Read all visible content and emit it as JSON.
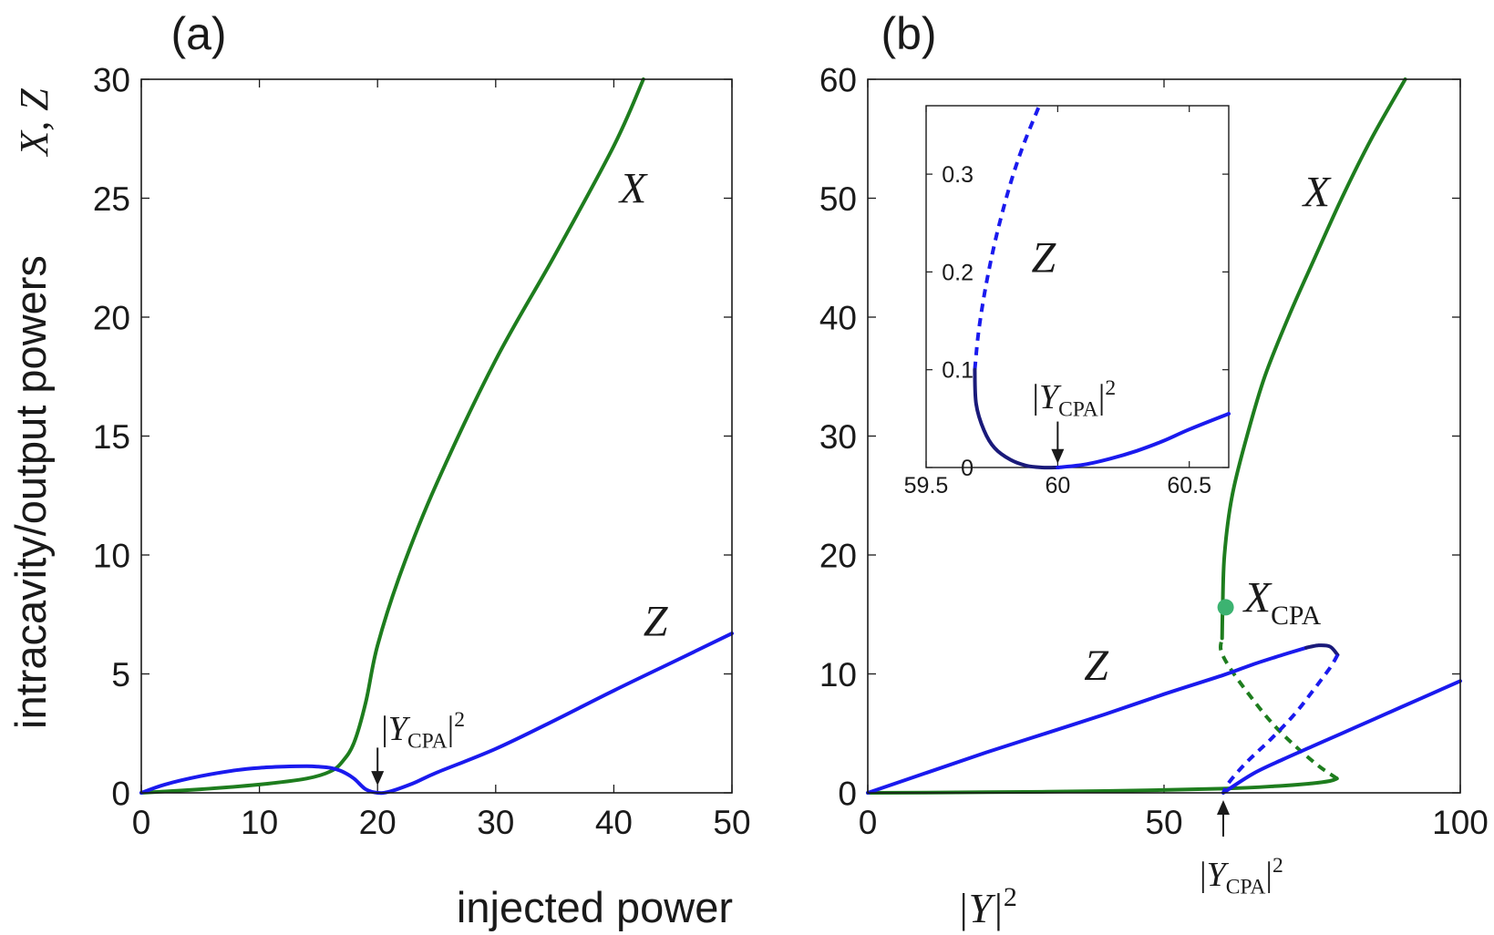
{
  "colors": {
    "x": "#1e7d1e",
    "z": "#1a1aee",
    "zdark": "#1a1a7a",
    "marker": "#3cb371",
    "axis": "#1a1a1a"
  },
  "figure": {
    "ylabel": "intracavity/output powers",
    "ylabel_vars": "X, Z",
    "xlabel": "injected power",
    "xlabel_var": "|Y|",
    "xlabel_sup": "2"
  },
  "chart_data": [
    {
      "type": "line",
      "panel_label": "(a)",
      "xlim": [
        0,
        50
      ],
      "ylim": [
        0,
        30
      ],
      "xticks": [
        0,
        10,
        20,
        30,
        40,
        50
      ],
      "yticks": [
        0,
        5,
        10,
        15,
        20,
        25,
        30
      ],
      "xtick_labels": [
        "0",
        "10",
        "20",
        "30",
        "40",
        "50"
      ],
      "ytick_labels": [
        "0",
        "5",
        "10",
        "15",
        "20",
        "25",
        "30"
      ],
      "series": [
        {
          "name": "X",
          "style": "solid",
          "color": "#1e7d1e",
          "x": [
            0,
            5,
            10,
            14,
            16,
            17,
            18,
            19,
            20,
            22,
            25,
            30,
            35,
            40,
            42.5
          ],
          "y": [
            0,
            0.15,
            0.35,
            0.6,
            0.9,
            1.3,
            2.1,
            3.8,
            6.2,
            9.3,
            13.0,
            18.2,
            22.6,
            27.2,
            30.0
          ]
        },
        {
          "name": "Z",
          "style": "solid",
          "color": "#1a1aee",
          "x": [
            0,
            2,
            5,
            8,
            10,
            12,
            14,
            15,
            16,
            17,
            18,
            19,
            20,
            21,
            23,
            25,
            30,
            35,
            40,
            45,
            50
          ],
          "y": [
            0,
            0.35,
            0.7,
            0.95,
            1.05,
            1.1,
            1.12,
            1.1,
            1.05,
            0.9,
            0.6,
            0.15,
            0.0,
            0.05,
            0.4,
            0.85,
            1.85,
            3.05,
            4.3,
            5.5,
            6.7
          ]
        }
      ],
      "labels": [
        {
          "text": "X",
          "x": 40.5,
          "y": 24.8
        },
        {
          "text": "Z",
          "x": 42.5,
          "y": 6.6
        }
      ],
      "annotations": [
        {
          "text": "|Y",
          "sub": "CPA",
          "sup": "2",
          "arrow_x": 20,
          "arrow_y_top": 1.9,
          "arrow_y_bottom": 0.3
        }
      ]
    },
    {
      "type": "line",
      "panel_label": "(b)",
      "xlim": [
        0,
        100
      ],
      "ylim": [
        0,
        60
      ],
      "xticks": [
        0,
        50,
        100
      ],
      "yticks": [
        0,
        10,
        20,
        30,
        40,
        50,
        60
      ],
      "xtick_labels": [
        "0",
        "50",
        "100"
      ],
      "ytick_labels": [
        "0",
        "10",
        "20",
        "30",
        "40",
        "50",
        "60"
      ],
      "series": [
        {
          "name": "X lower branch",
          "style": "solid",
          "color": "#1e7d1e",
          "x": [
            0,
            20,
            40,
            60,
            70,
            75,
            78,
            79.2
          ],
          "y": [
            0,
            0.05,
            0.15,
            0.35,
            0.6,
            0.8,
            1.0,
            1.2
          ]
        },
        {
          "name": "X unstable branch",
          "style": "dashed",
          "color": "#1e7d1e",
          "x": [
            79.2,
            76,
            72,
            68,
            64,
            61,
            59.6,
            59.8
          ],
          "y": [
            1.2,
            2.3,
            4.0,
            6.0,
            8.5,
            10.6,
            12.0,
            13.0
          ]
        },
        {
          "name": "X upper branch",
          "style": "solid",
          "color": "#1e7d1e",
          "x": [
            59.8,
            59.9,
            60.2,
            61.5,
            64,
            67,
            71,
            75,
            80,
            85,
            90.7
          ],
          "y": [
            13.0,
            15.6,
            20.0,
            25.0,
            30.0,
            35.0,
            40.0,
            44.5,
            50.0,
            55.0,
            60.0
          ]
        },
        {
          "name": "Z upper branch",
          "style": "solid",
          "color": "#1a1aee",
          "x": [
            0,
            10,
            20,
            30,
            40,
            50,
            60,
            65,
            70,
            74
          ],
          "y": [
            0,
            1.7,
            3.4,
            5.0,
            6.6,
            8.3,
            9.9,
            10.8,
            11.6,
            12.2
          ]
        },
        {
          "name": "Z fold",
          "style": "solid",
          "color": "#1a1a7a",
          "x": [
            74,
            76,
            78,
            79.3
          ],
          "y": [
            12.2,
            12.4,
            12.3,
            11.6
          ]
        },
        {
          "name": "Z unstable branch",
          "style": "dashed",
          "color": "#1a1aee",
          "x": [
            79.3,
            78,
            75,
            72,
            68,
            64,
            61,
            60
          ],
          "y": [
            11.6,
            10.5,
            8.5,
            6.6,
            4.5,
            2.6,
            0.9,
            0.0
          ]
        },
        {
          "name": "Z lower branch",
          "style": "solid",
          "color": "#1a1aee",
          "x": [
            60,
            65,
            70,
            75,
            80,
            85,
            90,
            95,
            100
          ],
          "y": [
            0.0,
            1.6,
            2.8,
            3.9,
            5.0,
            6.1,
            7.2,
            8.3,
            9.4
          ]
        }
      ],
      "markers": [
        {
          "name": "X_CPA",
          "x": 60.4,
          "y": 15.6,
          "color": "#3cb371"
        }
      ],
      "labels": [
        {
          "text": "X",
          "x": 73.5,
          "y": 49.3
        },
        {
          "text": "Z",
          "x": 36.5,
          "y": 9.5
        },
        {
          "text": "X",
          "sub": "CPA",
          "x": 63.5,
          "y": 15.2
        }
      ],
      "annotations": [
        {
          "text": "|Y",
          "sub": "CPA",
          "sup": "2",
          "arrow_x": 60,
          "arrow_y_top": -5.2,
          "arrow_y_bottom": -0.7,
          "direction": "up"
        }
      ],
      "inset": {
        "type": "line",
        "xlim": [
          59.5,
          60.65
        ],
        "ylim": [
          0,
          0.37
        ],
        "xticks": [
          59.5,
          60,
          60.5
        ],
        "yticks": [
          0,
          0.1,
          0.2,
          0.3
        ],
        "xtick_labels": [
          "59.5",
          "60",
          "60.5"
        ],
        "ytick_labels": [
          "0",
          "0.1",
          "0.2",
          "0.3"
        ],
        "series": [
          {
            "name": "Z unstable",
            "style": "dashed",
            "color": "#1a1aee",
            "x": [
              59.685,
              59.7,
              59.73,
              59.77,
              59.82,
              59.87,
              59.93
            ],
            "y": [
              0.1,
              0.14,
              0.19,
              0.24,
              0.29,
              0.33,
              0.37
            ]
          },
          {
            "name": "Z fold",
            "style": "solid",
            "color": "#1a1a7a",
            "x": [
              59.685,
              59.69,
              59.72,
              59.76,
              59.82,
              59.88,
              59.94,
              60.0
            ],
            "y": [
              0.1,
              0.065,
              0.038,
              0.02,
              0.008,
              0.002,
              0.0,
              0.0
            ]
          },
          {
            "name": "Z stable",
            "style": "solid",
            "color": "#1a1aee",
            "x": [
              60.0,
              60.1,
              60.2,
              60.3,
              60.4,
              60.5,
              60.65
            ],
            "y": [
              0.0,
              0.003,
              0.009,
              0.017,
              0.027,
              0.039,
              0.055
            ]
          }
        ],
        "labels": [
          {
            "text": "Z",
            "x": 59.9,
            "y": 0.2
          }
        ],
        "annotations": [
          {
            "text": "|Y",
            "sub": "CPA",
            "sup": "2",
            "arrow_x": 60,
            "arrow_y_top": 0.047,
            "arrow_y_bottom": 0.004
          }
        ]
      }
    }
  ]
}
